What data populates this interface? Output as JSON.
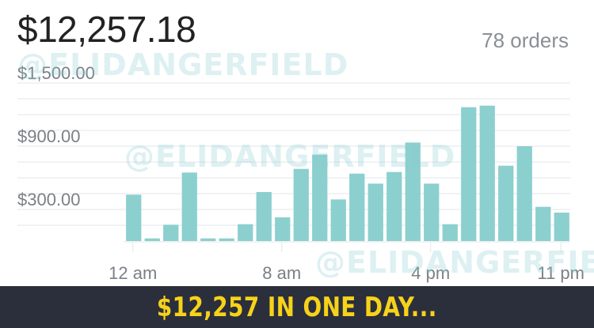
{
  "header": {
    "total_sales": "$12,257.18",
    "orders": "78 orders"
  },
  "watermark": "@ELIDANGERFIELD",
  "banner": {
    "text": "$12,257 IN ONE DAY..."
  },
  "colors": {
    "bar": "#8ccfcf",
    "grid": "#e3e5e8",
    "label": "#7b8086",
    "banner_bg": "#2b2f3b",
    "banner_text": "#f7d21a"
  },
  "chart_data": {
    "type": "bar",
    "title": "",
    "xlabel": "",
    "ylabel": "",
    "ylim": [
      0,
      1500
    ],
    "yticks": [
      300,
      900,
      1500
    ],
    "ytick_labels": [
      "$300.00",
      "$900.00",
      "$1,500.00"
    ],
    "grid": true,
    "categories": [
      "12 am",
      "1 am",
      "2 am",
      "3 am",
      "4 am",
      "5 am",
      "6 am",
      "7 am",
      "8 am",
      "9 am",
      "10 am",
      "11 am",
      "12 pm",
      "1 pm",
      "2 pm",
      "3 pm",
      "4 pm",
      "5 pm",
      "6 pm",
      "7 pm",
      "8 pm",
      "9 pm",
      "10 pm",
      "11 pm"
    ],
    "xtick_labels": [
      {
        "index": 0,
        "label": "12 am"
      },
      {
        "index": 8,
        "label": "8 am"
      },
      {
        "index": 16,
        "label": "4 pm"
      },
      {
        "index": 23,
        "label": "11 pm"
      }
    ],
    "values": [
      440,
      25,
      155,
      650,
      25,
      25,
      160,
      465,
      225,
      685,
      820,
      395,
      640,
      545,
      655,
      935,
      545,
      160,
      1270,
      1285,
      715,
      900,
      325,
      270
    ]
  }
}
